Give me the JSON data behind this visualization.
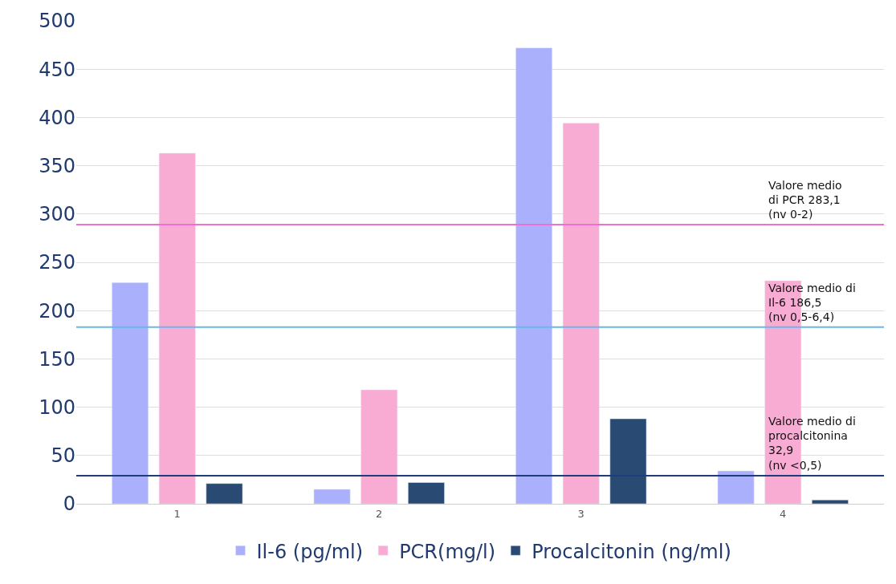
{
  "chart_data": {
    "type": "bar",
    "categories": [
      "1",
      "2",
      "3",
      "4"
    ],
    "series": [
      {
        "name": "Il-6 (pg/ml)",
        "color": "#aab0fb",
        "values": [
          229,
          15,
          472,
          34
        ]
      },
      {
        "name": "PCR(mg/l)",
        "color": "#f9acd3",
        "values": [
          363,
          118,
          394,
          231
        ]
      },
      {
        "name": "Procalcitonin (ng/ml)",
        "color": "#284a73",
        "values": [
          21,
          22,
          88,
          4
        ]
      }
    ],
    "ylim": [
      0,
      500
    ],
    "yticks": [
      0,
      50,
      100,
      150,
      200,
      250,
      300,
      350,
      400,
      450,
      500
    ],
    "grid": "y",
    "legend": "bottom",
    "ref_lines": [
      {
        "axis": "y",
        "value": 289,
        "label": "Valore medio\ndi PCR 283,1\n(nv 0-2)",
        "color": "#f070d0"
      },
      {
        "axis": "y",
        "value": 183,
        "label": "Valore medio di\nIl-6 186,5\n(nv 0,5-6,4)",
        "color": "#6ab8e8"
      },
      {
        "axis": "y",
        "value": 29,
        "label": "Valore medio di\nprocalcitonina\n32,9\n(nv <0,5)",
        "color": "#1f3d7a"
      }
    ]
  }
}
